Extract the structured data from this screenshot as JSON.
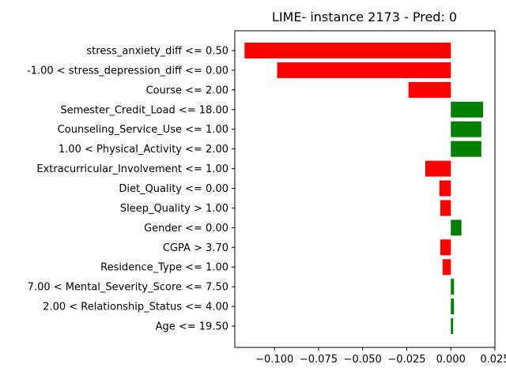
{
  "chart_data": {
    "type": "bar",
    "orientation": "horizontal",
    "title": "LIME- instance 2173 - Pred: 0",
    "xlabel": "",
    "ylabel": "",
    "xlim": [
      -0.1225,
      0.025
    ],
    "x_ticks": [
      -0.1,
      -0.075,
      -0.05,
      -0.025,
      0.0,
      0.025
    ],
    "x_tick_labels": [
      "−0.100",
      "−0.075",
      "−0.050",
      "−0.025",
      "0.000",
      "0.025"
    ],
    "grid": false,
    "colors": {
      "positive": "#008000",
      "negative": "#ff0000"
    },
    "categories": [
      "stress_anxiety_diff <= 0.50",
      "-1.00 < stress_depression_diff <= 0.00",
      "Course <= 2.00",
      "Semester_Credit_Load <= 18.00",
      "Counseling_Service_Use <= 1.00",
      "1.00 < Physical_Activity <= 2.00",
      "Extracurricular_Involvement <= 1.00",
      "Diet_Quality <= 0.00",
      "Sleep_Quality > 1.00",
      "Gender <= 0.00",
      "CGPA > 3.70",
      "Residence_Type <= 1.00",
      "7.00 < Mental_Severity_Score <= 7.50",
      "2.00 < Relationship_Status <= 4.00",
      "Age <= 19.50"
    ],
    "values": [
      -0.117,
      -0.0985,
      -0.024,
      0.0183,
      0.0173,
      0.0173,
      -0.0145,
      -0.0065,
      -0.006,
      0.006,
      -0.006,
      -0.0047,
      0.0018,
      0.0018,
      0.0013
    ]
  }
}
